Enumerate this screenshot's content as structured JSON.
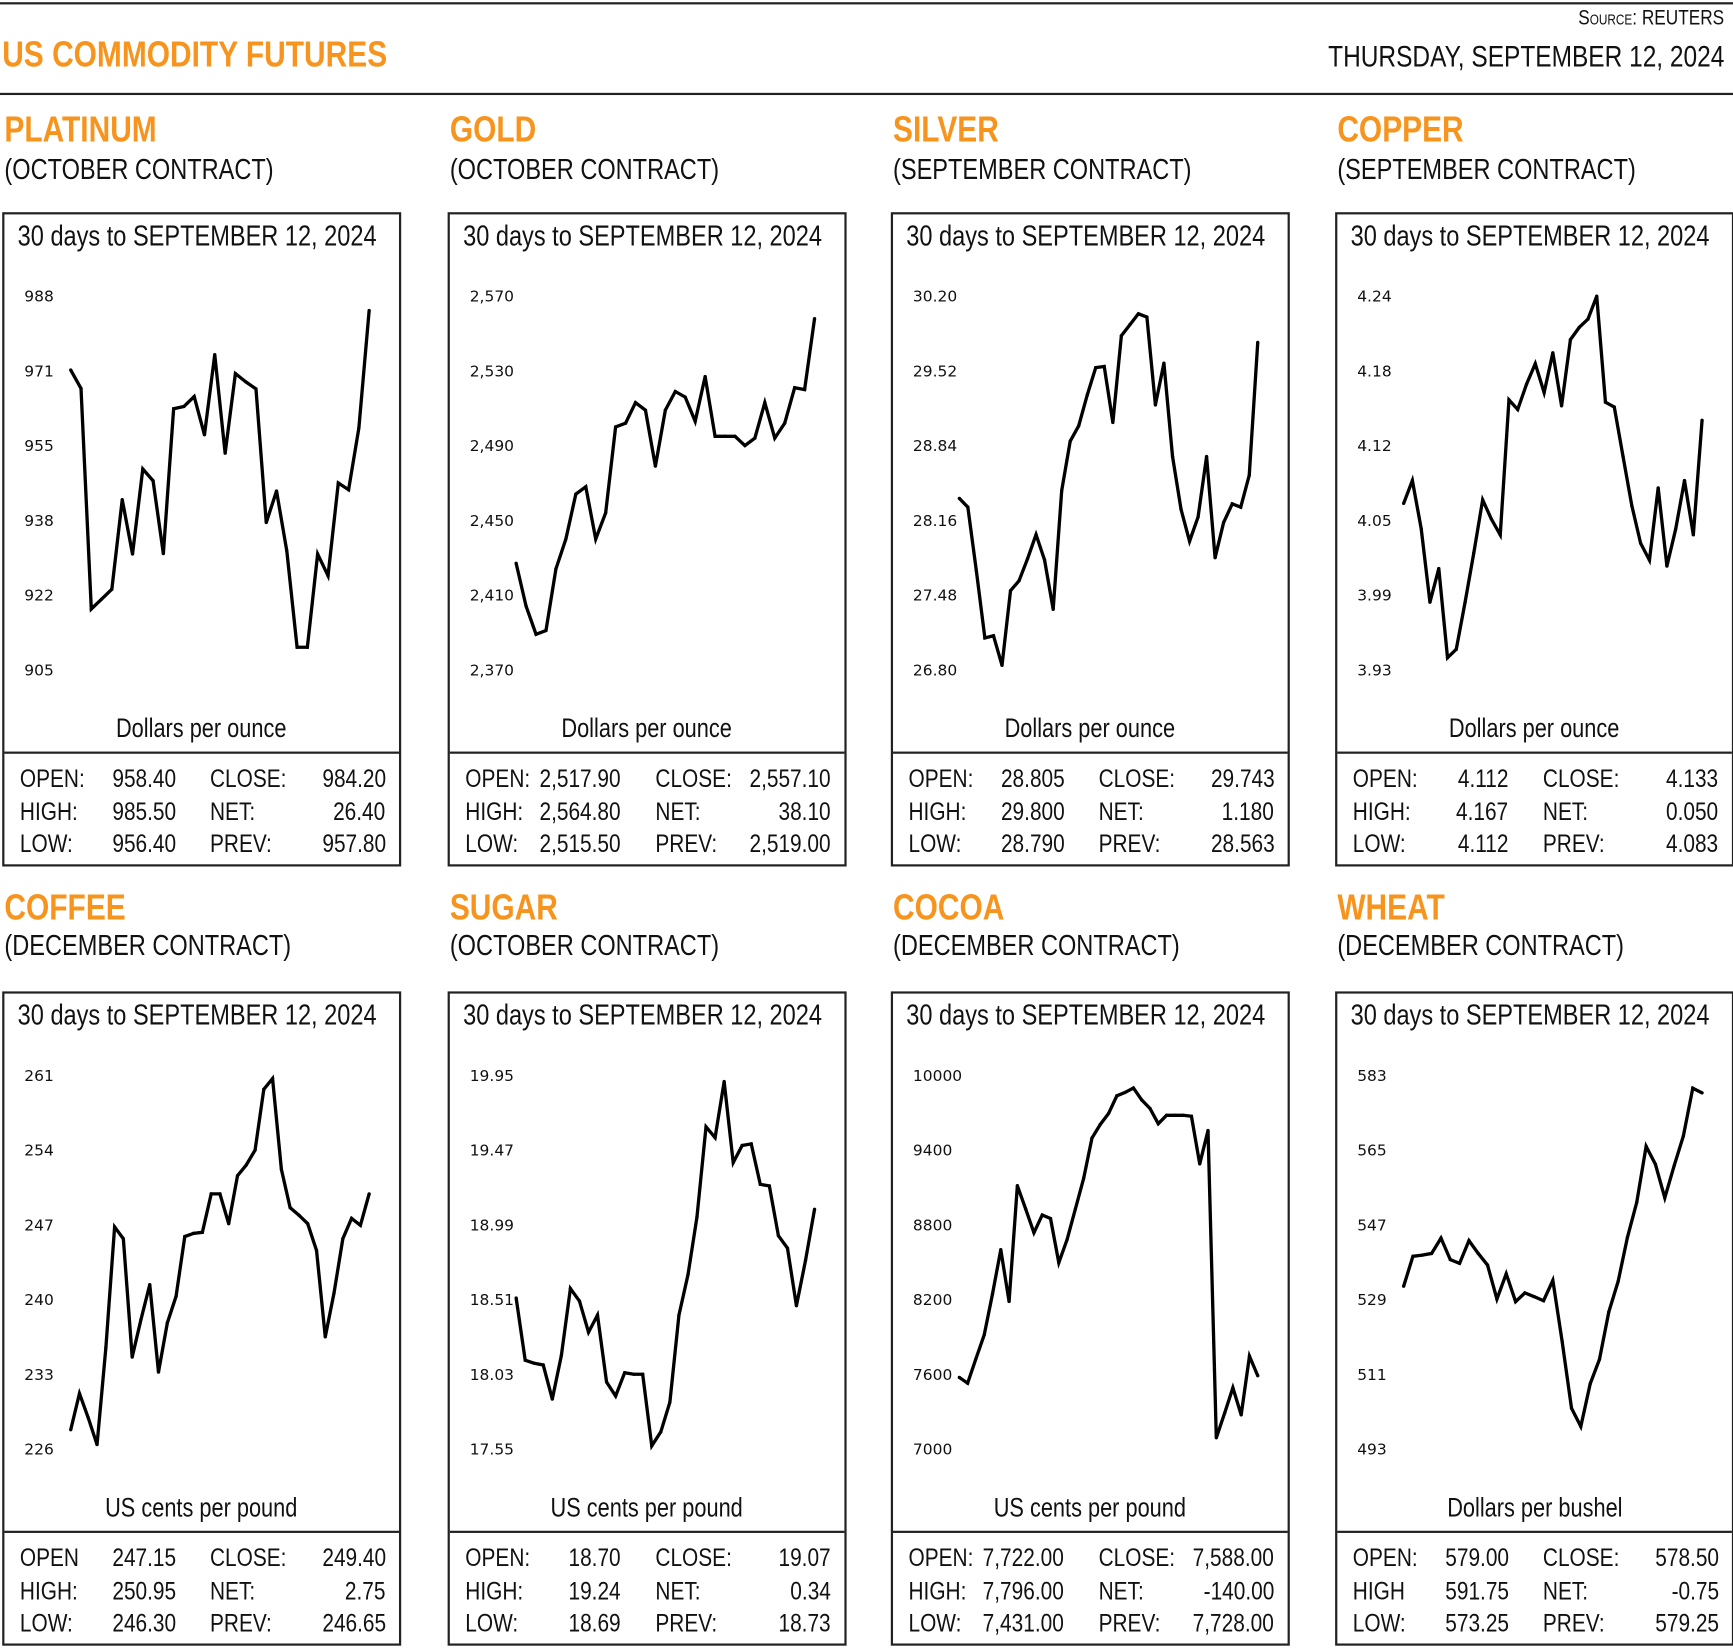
{
  "header": {
    "title": "US COMMODITY FUTURES",
    "source": "Source: REUTERS",
    "date": "THURSDAY, SEPTEMBER 12, 2024"
  },
  "colors": {
    "accent": "#F7941D",
    "line": "#000000",
    "border": "#222222"
  },
  "panels": [
    {
      "name": "PLATINUM",
      "contract": "(OCTOBER CONTRACT)",
      "stats": [
        {
          "label": "OPEN:",
          "value": "958.40"
        },
        {
          "label": "CLOSE:",
          "value": "984.20"
        },
        {
          "label": "HIGH:",
          "value": "985.50"
        },
        {
          "label": "NET:",
          "value": "26.40"
        },
        {
          "label": "LOW:",
          "value": "956.40"
        },
        {
          "label": "PREV:",
          "value": "957.80"
        }
      ]
    },
    {
      "name": "GOLD",
      "contract": "(OCTOBER CONTRACT)",
      "stats": [
        {
          "label": "OPEN:",
          "value": "2,517.90"
        },
        {
          "label": "CLOSE:",
          "value": "2,557.10"
        },
        {
          "label": "HIGH:",
          "value": "2,564.80"
        },
        {
          "label": "NET:",
          "value": "38.10"
        },
        {
          "label": "LOW:",
          "value": "2,515.50"
        },
        {
          "label": "PREV:",
          "value": "2,519.00"
        }
      ]
    },
    {
      "name": "SILVER",
      "contract": "(SEPTEMBER CONTRACT)",
      "stats": [
        {
          "label": "OPEN:",
          "value": "28.805"
        },
        {
          "label": "CLOSE:",
          "value": "29.743"
        },
        {
          "label": "HIGH:",
          "value": "29.800"
        },
        {
          "label": "NET:",
          "value": "1.180"
        },
        {
          "label": "LOW:",
          "value": "28.790"
        },
        {
          "label": "PREV:",
          "value": "28.563"
        }
      ]
    },
    {
      "name": "COPPER",
      "contract": "(SEPTEMBER CONTRACT)",
      "stats": [
        {
          "label": "OPEN:",
          "value": "4.112"
        },
        {
          "label": "CLOSE:",
          "value": "4.133"
        },
        {
          "label": "HIGH:",
          "value": "4.167"
        },
        {
          "label": "NET:",
          "value": "0.050"
        },
        {
          "label": "LOW:",
          "value": "4.112"
        },
        {
          "label": "PREV:",
          "value": "4.083"
        }
      ]
    },
    {
      "name": "COFFEE",
      "contract": "(DECEMBER CONTRACT)",
      "stats": [
        {
          "label": "OPEN",
          "value": "247.15"
        },
        {
          "label": "CLOSE:",
          "value": "249.40"
        },
        {
          "label": "HIGH:",
          "value": "250.95"
        },
        {
          "label": "NET:",
          "value": "2.75"
        },
        {
          "label": "LOW:",
          "value": "246.30"
        },
        {
          "label": "PREV:",
          "value": "246.65"
        }
      ]
    },
    {
      "name": "SUGAR",
      "contract": "(OCTOBER CONTRACT)",
      "stats": [
        {
          "label": "OPEN:",
          "value": "18.70"
        },
        {
          "label": "CLOSE:",
          "value": "19.07"
        },
        {
          "label": "HIGH:",
          "value": "19.24"
        },
        {
          "label": "NET:",
          "value": "0.34"
        },
        {
          "label": "LOW:",
          "value": "18.69"
        },
        {
          "label": "PREV:",
          "value": "18.73"
        }
      ]
    },
    {
      "name": "COCOA",
      "contract": "(DECEMBER CONTRACT)",
      "stats": [
        {
          "label": "OPEN:",
          "value": "7,722.00"
        },
        {
          "label": "CLOSE:",
          "value": "7,588.00"
        },
        {
          "label": "HIGH:",
          "value": "7,796.00"
        },
        {
          "label": "NET:",
          "value": "-140.00"
        },
        {
          "label": "LOW:",
          "value": "7,431.00"
        },
        {
          "label": "PREV:",
          "value": "7,728.00"
        }
      ]
    },
    {
      "name": "WHEAT",
      "contract": "(DECEMBER CONTRACT)",
      "stats": [
        {
          "label": "OPEN:",
          "value": "579.00"
        },
        {
          "label": "CLOSE:",
          "value": "578.50"
        },
        {
          "label": "HIGH",
          "value": "591.75"
        },
        {
          "label": "NET:",
          "value": "-0.75"
        },
        {
          "label": "LOW:",
          "value": "573.25"
        },
        {
          "label": "PREV:",
          "value": "579.25"
        }
      ]
    }
  ],
  "chart_data": [
    {
      "type": "line",
      "title": "30 days to SEPTEMBER 12, 2024",
      "ylabel": "Dollars per ounce",
      "ylim": [
        905,
        988
      ],
      "yticks": [
        "988",
        "971",
        "955",
        "938",
        "922",
        "905"
      ],
      "grid": false,
      "values": [
        971.6,
        967.5,
        918.5,
        920.7,
        922.9,
        942.8,
        930.7,
        949.6,
        947,
        930.8,
        963,
        963.5,
        965.7,
        957.2,
        975,
        953.1,
        970.8,
        969,
        967.4,
        937.7,
        944.7,
        931.4,
        910,
        910,
        930.7,
        925.9,
        946.5,
        945,
        958.7,
        984.8
      ]
    },
    {
      "type": "line",
      "title": "30 days to SEPTEMBER 12, 2024",
      "ylabel": "Dollars per ounce",
      "ylim": [
        2370,
        2570
      ],
      "yticks": [
        "2,570",
        "2,530",
        "2,490",
        "2,450",
        "2,410",
        "2,370"
      ],
      "grid": false,
      "values": [
        2427,
        2404,
        2389,
        2391,
        2424,
        2440,
        2464,
        2468,
        2440,
        2454,
        2500,
        2502,
        2513,
        2509,
        2479,
        2509,
        2519,
        2516,
        2503,
        2527,
        2495,
        2495,
        2495,
        2490,
        2494,
        2513,
        2494,
        2502,
        2521,
        2520,
        2558
      ]
    },
    {
      "type": "line",
      "title": "30 days to SEPTEMBER 12, 2024",
      "ylabel": "Dollars per ounce",
      "ylim": [
        26.8,
        30.2
      ],
      "yticks": [
        "30.20",
        "29.52",
        "28.84",
        "28.16",
        "27.48",
        "26.80"
      ],
      "grid": false,
      "values": [
        28.36,
        28.28,
        27.7,
        27.09,
        27.11,
        26.84,
        27.52,
        27.61,
        27.81,
        28.03,
        27.8,
        27.35,
        28.43,
        28.88,
        29.02,
        29.3,
        29.55,
        29.56,
        29.05,
        29.84,
        29.94,
        30.04,
        30.01,
        29.21,
        29.59,
        28.74,
        28.26,
        27.97,
        28.19,
        28.74,
        27.82,
        28.14,
        28.31,
        28.28,
        28.57,
        29.78
      ]
    },
    {
      "type": "line",
      "title": "30 days to SEPTEMBER 12, 2024",
      "ylabel": "Dollars per ounce",
      "ylim": [
        3.93,
        4.24
      ],
      "yticks": [
        "4.24",
        "4.18",
        "4.12",
        "4.05",
        "3.99",
        "3.93"
      ],
      "grid": false,
      "values": [
        4.068,
        4.087,
        4.047,
        3.986,
        4.014,
        3.94,
        3.947,
        3.986,
        4.027,
        4.071,
        4.055,
        4.042,
        4.154,
        4.146,
        4.167,
        4.184,
        4.16,
        4.193,
        4.149,
        4.204,
        4.214,
        4.221,
        4.24,
        4.152,
        4.148,
        4.107,
        4.066,
        4.035,
        4.021,
        4.081,
        4.016,
        4.047,
        4.087,
        4.042,
        4.137
      ]
    },
    {
      "type": "line",
      "title": "30 days to SEPTEMBER 12, 2024",
      "ylabel": "US cents per pound",
      "ylim": [
        226,
        261
      ],
      "yticks": [
        "261",
        "254",
        "247",
        "240",
        "233",
        "226"
      ],
      "grid": false,
      "values": [
        227.8,
        231.2,
        228.9,
        226.4,
        235.5,
        246.8,
        245.7,
        234.6,
        238.1,
        241.4,
        233.2,
        237.8,
        240.3,
        245.9,
        246.2,
        246.3,
        249.9,
        249.9,
        247.1,
        251.6,
        252.6,
        254.0,
        259.7,
        260.7,
        252.2,
        248.6,
        247.9,
        247.1,
        244.6,
        236.5,
        240.6,
        245.7,
        247.6,
        246.96,
        249.9
      ]
    },
    {
      "type": "line",
      "title": "30 days to SEPTEMBER 12, 2024",
      "ylabel": "US cents per pound",
      "ylim": [
        17.55,
        19.95
      ],
      "yticks": [
        "19.95",
        "19.47",
        "18.99",
        "18.51",
        "18.03",
        "17.55"
      ],
      "grid": false,
      "values": [
        18.52,
        18.12,
        18.1,
        18.09,
        17.87,
        18.15,
        18.58,
        18.5,
        18.3,
        18.41,
        17.98,
        17.89,
        18.04,
        18.03,
        18.03,
        17.57,
        17.66,
        17.85,
        18.41,
        18.67,
        19.04,
        19.62,
        19.55,
        19.91,
        19.39,
        19.5,
        19.51,
        19.25,
        19.24,
        18.92,
        18.84,
        18.47,
        18.76,
        19.09
      ]
    },
    {
      "type": "line",
      "title": "30 days to SEPTEMBER 12, 2024",
      "ylabel": "US cents per pound",
      "ylim": [
        7000,
        10000
      ],
      "yticks": [
        "10000",
        "9400",
        "8800",
        "8200",
        "7600",
        "7000"
      ],
      "grid": false,
      "values": [
        7574,
        7528,
        7724,
        7916,
        8244,
        8600,
        8184,
        9114,
        8928,
        8736,
        8879,
        8851,
        8496,
        8682,
        8928,
        9174,
        9497,
        9606,
        9694,
        9836,
        9863,
        9899,
        9803,
        9735,
        9612,
        9680,
        9680,
        9680,
        9672,
        9289,
        9557,
        7090,
        7287,
        7492,
        7273,
        7746,
        7588
      ]
    },
    {
      "type": "line",
      "title": "30 days to SEPTEMBER 12, 2024",
      "ylabel": "Dollars per bushel",
      "ylim": [
        493,
        583
      ],
      "yticks": [
        "583",
        "565",
        "547",
        "529",
        "511",
        "493"
      ],
      "grid": false,
      "values": [
        532.2,
        539.4,
        539.7,
        540.1,
        543.8,
        538.6,
        537.7,
        543.2,
        540.1,
        537.3,
        529.1,
        535.2,
        528.5,
        530.6,
        529.7,
        528.7,
        533.6,
        518.9,
        502.8,
        498.4,
        508.7,
        514.6,
        526.0,
        533.4,
        544.0,
        552.4,
        565.9,
        561.6,
        553.5,
        561.2,
        568.4,
        579.9,
        578.8
      ]
    }
  ]
}
